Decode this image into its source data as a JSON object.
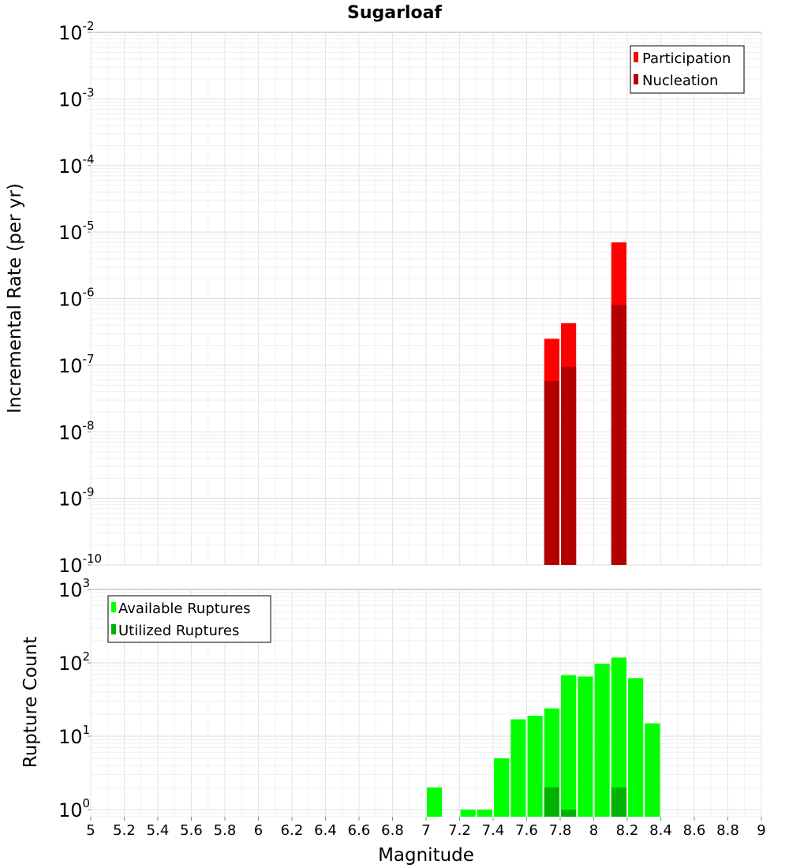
{
  "chart_data": [
    {
      "id": "rate",
      "type": "bar",
      "title": "Sugarloaf",
      "xlabel": "",
      "ylabel": "Incremental Rate (per yr)",
      "yscale": "log",
      "ylim_exp": [
        -10,
        -2
      ],
      "xlim": [
        5,
        9
      ],
      "bar_width": 0.09,
      "legend_position": "top-right",
      "series": [
        {
          "name": "Participation",
          "color": "#ff0000",
          "x": [
            7.75,
            7.85,
            8.15
          ],
          "values": [
            2.5e-07,
            4.3e-07,
            7e-06
          ]
        },
        {
          "name": "Nucleation",
          "color": "#b20000",
          "x": [
            7.75,
            7.85,
            8.15
          ],
          "values": [
            5.8e-08,
            9.5e-08,
            8e-07
          ]
        }
      ]
    },
    {
      "id": "count",
      "type": "bar",
      "title": "",
      "xlabel": "Magnitude",
      "ylabel": "Rupture Count",
      "yscale": "log",
      "ylim": [
        0.8,
        1000
      ],
      "y_tick_exp": [
        0,
        1,
        2,
        3
      ],
      "xlim": [
        5,
        9
      ],
      "bar_width": 0.09,
      "legend_position": "top-left",
      "x_ticks": [
        "5",
        "5.2",
        "5.4",
        "5.6",
        "5.8",
        "6",
        "6.2",
        "6.4",
        "6.6",
        "6.8",
        "7",
        "7.2",
        "7.4",
        "7.6",
        "7.8",
        "8",
        "8.2",
        "8.4",
        "8.6",
        "8.8",
        "9"
      ],
      "series": [
        {
          "name": "Available Ruptures",
          "color": "#00ff00",
          "x": [
            7.05,
            7.25,
            7.35,
            7.45,
            7.55,
            7.65,
            7.75,
            7.85,
            7.95,
            8.05,
            8.15,
            8.25,
            8.35
          ],
          "values": [
            2,
            1,
            1,
            5,
            17,
            19,
            24,
            68,
            65,
            97,
            118,
            62,
            15
          ]
        },
        {
          "name": "Utilized Ruptures",
          "color": "#00b200",
          "x": [
            7.75,
            7.85,
            8.15
          ],
          "values": [
            2,
            1,
            2
          ]
        }
      ]
    }
  ]
}
